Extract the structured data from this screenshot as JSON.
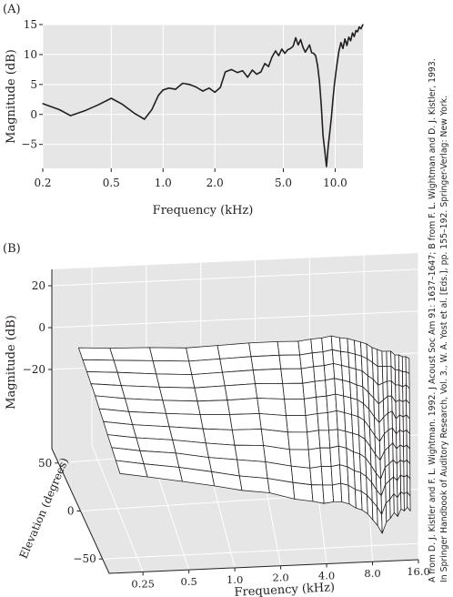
{
  "panels": {
    "a": {
      "label": "(A)"
    },
    "b": {
      "label": "(B)"
    }
  },
  "credit_lines": [
    "A from D. J. Kistler and F. L. Wightman. 1992. J Acoust Soc Am 91: 1637–1647; B from F. L. Wightman and D. J. Kistler, 1993.",
    "In Springer Handbook of Auditory Research, Vol. 3., W. A. Yost et al. [Eds.], pp. 155–192. Springer-Verlag: New York."
  ],
  "colors": {
    "plot_background": "#e7e6e6",
    "line": "#231f20",
    "grid": "#ffffff"
  },
  "chart_data": [
    {
      "type": "line",
      "xlabel": "Frequency (kHz)",
      "ylabel": "Magnitude (dB)",
      "x_scale": "log",
      "xlim": [
        0.2,
        14.5
      ],
      "ylim": [
        -9,
        15
      ],
      "x_ticks": [
        0.2,
        0.5,
        1.0,
        2.0,
        5.0,
        10.0
      ],
      "x_tick_labels": [
        "0.2",
        "0.5",
        "1.0",
        "2.0",
        "5.0",
        "10.0"
      ],
      "y_ticks": [
        15,
        10,
        5,
        0,
        -5
      ],
      "y_tick_labels": [
        "15",
        "10",
        "5",
        "0",
        "−5"
      ],
      "grid": true,
      "series": [
        {
          "x": [
            0.2,
            0.25,
            0.29,
            0.35,
            0.42,
            0.5,
            0.58,
            0.68,
            0.78,
            0.86,
            0.94,
            1.0,
            1.08,
            1.18,
            1.3,
            1.42,
            1.55,
            1.7,
            1.85,
            2.0,
            2.15,
            2.3,
            2.5,
            2.7,
            2.9,
            3.1,
            3.3,
            3.5,
            3.7,
            3.9,
            4.1,
            4.3,
            4.5,
            4.7,
            4.9,
            5.1,
            5.3,
            5.5,
            5.7,
            5.9,
            6.1,
            6.3,
            6.5,
            6.7,
            6.9,
            7.1,
            7.3,
            7.5,
            7.7,
            7.9,
            8.1,
            8.3,
            8.5,
            8.7,
            8.9,
            9.1,
            9.3,
            9.5,
            9.7,
            9.9,
            10.2,
            10.5,
            10.8,
            11.1,
            11.4,
            11.7,
            12.0,
            12.3,
            12.6,
            12.9,
            13.2,
            13.5,
            13.8,
            14.1,
            14.5
          ],
          "y": [
            1.8,
            0.8,
            -0.2,
            0.6,
            1.6,
            2.7,
            1.7,
            0.2,
            -0.8,
            0.8,
            3.2,
            4.1,
            4.4,
            4.2,
            5.2,
            5.0,
            4.6,
            3.9,
            4.4,
            3.7,
            4.5,
            7.1,
            7.5,
            7.0,
            7.3,
            6.2,
            7.4,
            6.7,
            7.1,
            8.5,
            8.0,
            9.6,
            10.6,
            9.8,
            10.9,
            10.2,
            10.8,
            11.0,
            11.4,
            12.8,
            11.6,
            12.5,
            11.2,
            10.4,
            11.0,
            11.6,
            10.3,
            10.2,
            9.8,
            8.2,
            5.5,
            1.5,
            -3.5,
            -6.0,
            -8.7,
            -5.5,
            -3.0,
            -0.5,
            2.5,
            5.0,
            8.0,
            10.5,
            12.0,
            11.0,
            12.6,
            11.5,
            12.9,
            12.3,
            13.6,
            13.0,
            14.0,
            13.8,
            14.6,
            14.3,
            15.0
          ]
        }
      ]
    },
    {
      "type": "surface",
      "title": "",
      "xlabel": "Frequency (kHz)",
      "ylabel": "Elevation (degrees)",
      "zlabel": "Magnitude (dB)",
      "x_scale": "log",
      "x_ticks": [
        0.25,
        0.5,
        1.0,
        2.0,
        4.0,
        8.0,
        16.0
      ],
      "x_tick_labels": [
        "0.25",
        "0.5",
        "1.0",
        "2.0",
        "4.0",
        "8.0",
        "16.0"
      ],
      "y_ticks": [
        50,
        0,
        -50
      ],
      "y_tick_labels": [
        "50",
        "0",
        "−50"
      ],
      "z_ticks": [
        20,
        0,
        -20
      ],
      "z_tick_labels": [
        "20",
        "0",
        "−20"
      ],
      "zlim": [
        -40,
        20
      ],
      "grid": true,
      "frequency_khz": [
        0.2,
        0.3,
        0.5,
        0.8,
        1.2,
        1.8,
        2.6,
        3.4,
        4.0,
        4.6,
        5.2,
        5.8,
        6.4,
        7.0,
        7.6,
        8.2,
        8.8,
        9.4,
        10.0,
        10.6,
        11.2,
        11.8,
        12.4,
        13.0,
        13.6,
        14.2
      ],
      "elevation_deg": [
        -45,
        -35,
        -25,
        -15,
        -5,
        5,
        15,
        25,
        35,
        45,
        55
      ],
      "magnitude_db_by_elevation": [
        [
          -7.5,
          -9,
          -11,
          -13,
          -15,
          -16,
          -19,
          -20,
          -21,
          -20,
          -20,
          -21,
          -23,
          -24,
          -26,
          -29,
          -32,
          -36,
          -30,
          -28,
          -25,
          -27,
          -23,
          -24,
          -22,
          -24
        ],
        [
          -7,
          -8.5,
          -10,
          -12,
          -14,
          -15,
          -17,
          -18,
          -18,
          -18,
          -17,
          -18,
          -20,
          -21,
          -23,
          -26,
          -29,
          -33,
          -27,
          -25,
          -22,
          -24,
          -21,
          -22,
          -21,
          -23
        ],
        [
          -6.5,
          -8,
          -9,
          -11,
          -12,
          -13,
          -15,
          -16,
          -15,
          -15,
          -14,
          -15,
          -17,
          -18,
          -20,
          -23,
          -27,
          -30,
          -24,
          -22,
          -20,
          -22,
          -19,
          -20,
          -19,
          -21
        ],
        [
          -6,
          -7.5,
          -8.5,
          -10,
          -11,
          -11,
          -13,
          -13,
          -12,
          -12,
          -11,
          -12,
          -14,
          -15,
          -17,
          -21,
          -25,
          -28,
          -22,
          -20,
          -18,
          -20,
          -18,
          -19,
          -18,
          -20
        ],
        [
          -5.5,
          -7,
          -8,
          -9,
          -9.5,
          -9,
          -10.5,
          -10.5,
          -9.5,
          -9.5,
          -9,
          -10,
          -11,
          -12,
          -14,
          -18,
          -22,
          -25,
          -20,
          -18,
          -16,
          -19,
          -17,
          -18,
          -17,
          -19
        ],
        [
          -5,
          -6.5,
          -7.5,
          -8,
          -8,
          -7.5,
          -8.5,
          -8.5,
          -7.5,
          -7,
          -6,
          -7,
          -8,
          -9,
          -11,
          -15,
          -19,
          -22,
          -18,
          -16,
          -15,
          -18,
          -16,
          -17,
          -16,
          -18
        ],
        [
          -4.5,
          -6,
          -7,
          -7.5,
          -7,
          -6,
          -6.5,
          -6.5,
          -5.5,
          -5,
          -4,
          -5,
          -6,
          -7,
          -9,
          -12,
          -16,
          -19,
          -16,
          -14,
          -13,
          -17,
          -15,
          -16,
          -15,
          -17
        ],
        [
          -4.5,
          -5.5,
          -6.5,
          -7,
          -6,
          -5,
          -5,
          -5,
          -4,
          -3.5,
          -2.5,
          -3.5,
          -4.5,
          -6,
          -7,
          -10,
          -13,
          -16,
          -14,
          -12,
          -12,
          -15,
          -14,
          -15,
          -14,
          -16
        ],
        [
          -4.5,
          -5,
          -6,
          -6.5,
          -5.5,
          -4.5,
          -4,
          -4,
          -3,
          -2.5,
          -1.5,
          -2.5,
          -3.5,
          -4.5,
          -5.5,
          -8,
          -10,
          -13,
          -12,
          -11,
          -11,
          -13,
          -13,
          -14,
          -13,
          -15
        ],
        [
          -4.5,
          -5,
          -5.5,
          -6,
          -5,
          -4,
          -3.5,
          -3.5,
          -2.5,
          -2,
          -1,
          -2,
          -2.5,
          -3.5,
          -4.5,
          -6,
          -8,
          -10,
          -10,
          -10,
          -10,
          -12,
          -12,
          -13,
          -13,
          -14
        ],
        [
          -4.5,
          -5,
          -5,
          -5.5,
          -4.5,
          -3.5,
          -3,
          -3,
          -2,
          -1.5,
          -0.5,
          -1.5,
          -2,
          -3,
          -4,
          -5,
          -7,
          -8,
          -9,
          -9,
          -9,
          -11,
          -11,
          -12,
          -12,
          -13
        ]
      ]
    }
  ]
}
